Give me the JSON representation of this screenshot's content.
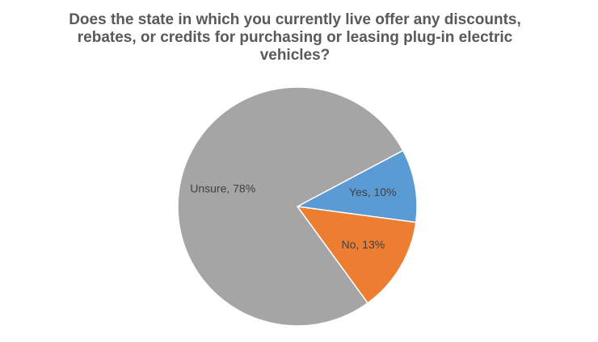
{
  "chart_data": {
    "type": "pie",
    "title": "Does the state in which you currently live offer any discounts, rebates, or credits for purchasing or leasing plug-in electric vehicles?",
    "values": [
      10,
      13,
      78
    ],
    "value_labels": [
      "Yes, 10%",
      "No, 13%",
      "Unsure, 78%"
    ],
    "colors": [
      "#5b9bd5",
      "#ed7d31",
      "#a5a5a5"
    ]
  }
}
